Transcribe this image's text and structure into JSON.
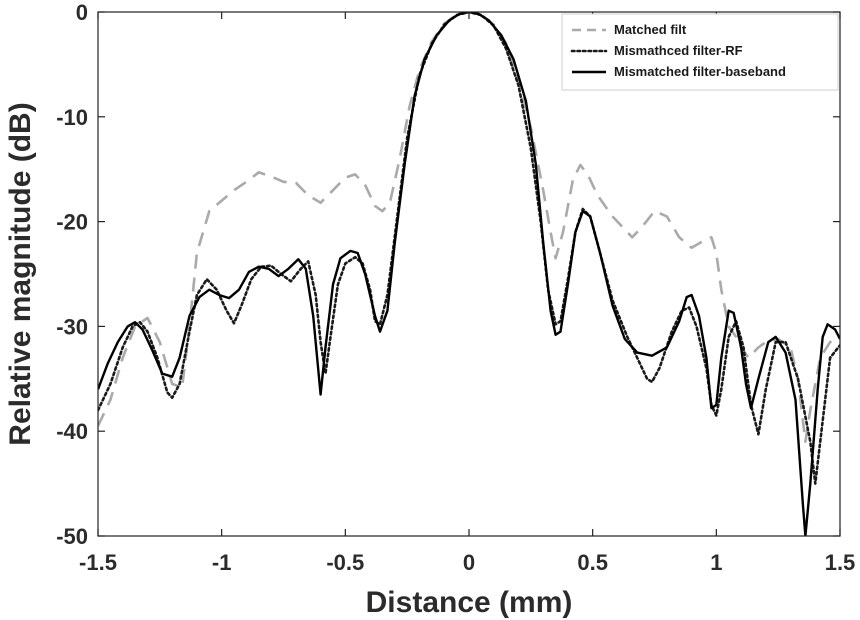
{
  "chart_data": {
    "type": "line",
    "xlabel": "Distance (mm)",
    "ylabel": "Relative magnitude (dB)",
    "xlim": [
      -1.5,
      1.5
    ],
    "ylim": [
      -50,
      0
    ],
    "xticks": [
      -1.5,
      -1,
      -0.5,
      0,
      0.5,
      1,
      1.5
    ],
    "xtick_labels": [
      "-1.5",
      "-1",
      "-0.5",
      "0",
      "0.5",
      "1",
      "1.5"
    ],
    "yticks": [
      -50,
      -40,
      -30,
      -20,
      -10,
      0
    ],
    "ytick_labels": [
      "-50",
      "-40",
      "-30",
      "-20",
      "-10",
      "0"
    ],
    "grid": false,
    "legend_position": "top-right",
    "series": [
      {
        "name": "Matched filt",
        "color": "#aaaaaa",
        "style": "dashed",
        "points": [
          [
            -1.5,
            -39.5
          ],
          [
            -1.45,
            -37
          ],
          [
            -1.4,
            -33
          ],
          [
            -1.35,
            -30
          ],
          [
            -1.3,
            -29.2
          ],
          [
            -1.25,
            -31.5
          ],
          [
            -1.2,
            -35.5
          ],
          [
            -1.16,
            -35.8
          ],
          [
            -1.13,
            -30
          ],
          [
            -1.1,
            -23
          ],
          [
            -1.05,
            -19
          ],
          [
            -1.0,
            -18
          ],
          [
            -0.95,
            -17
          ],
          [
            -0.9,
            -16.2
          ],
          [
            -0.85,
            -15.3
          ],
          [
            -0.8,
            -15.7
          ],
          [
            -0.75,
            -16.2
          ],
          [
            -0.7,
            -16.3
          ],
          [
            -0.65,
            -17.5
          ],
          [
            -0.6,
            -18.2
          ],
          [
            -0.55,
            -17
          ],
          [
            -0.5,
            -15.8
          ],
          [
            -0.46,
            -15.5
          ],
          [
            -0.42,
            -16.5
          ],
          [
            -0.38,
            -18.5
          ],
          [
            -0.35,
            -19
          ],
          [
            -0.32,
            -18.2
          ],
          [
            -0.28,
            -14
          ],
          [
            -0.24,
            -9
          ],
          [
            -0.2,
            -5.5
          ],
          [
            -0.15,
            -2.8
          ],
          [
            -0.1,
            -1.1
          ],
          [
            -0.05,
            -0.3
          ],
          [
            0,
            0
          ],
          [
            0.05,
            -0.3
          ],
          [
            0.1,
            -1.2
          ],
          [
            0.15,
            -3
          ],
          [
            0.2,
            -6.5
          ],
          [
            0.25,
            -11
          ],
          [
            0.3,
            -17
          ],
          [
            0.33,
            -21
          ],
          [
            0.35,
            -23.5
          ],
          [
            0.38,
            -21
          ],
          [
            0.42,
            -16
          ],
          [
            0.45,
            -14.6
          ],
          [
            0.48,
            -15.5
          ],
          [
            0.52,
            -17.5
          ],
          [
            0.58,
            -19.5
          ],
          [
            0.62,
            -20.5
          ],
          [
            0.66,
            -21.5
          ],
          [
            0.7,
            -20.5
          ],
          [
            0.75,
            -19
          ],
          [
            0.8,
            -19.5
          ],
          [
            0.85,
            -21.5
          ],
          [
            0.9,
            -22.5
          ],
          [
            0.95,
            -21.8
          ],
          [
            0.98,
            -21.5
          ],
          [
            1.0,
            -23
          ],
          [
            1.02,
            -26.5
          ],
          [
            1.05,
            -30
          ],
          [
            1.08,
            -31
          ],
          [
            1.1,
            -32
          ],
          [
            1.13,
            -33
          ],
          [
            1.17,
            -32
          ],
          [
            1.2,
            -31.5
          ],
          [
            1.25,
            -31.2
          ],
          [
            1.3,
            -32
          ],
          [
            1.33,
            -35
          ],
          [
            1.36,
            -41
          ],
          [
            1.38,
            -38
          ],
          [
            1.42,
            -33
          ],
          [
            1.46,
            -31.5
          ],
          [
            1.5,
            -31
          ]
        ]
      },
      {
        "name": "Mismathced filter-RF",
        "color": "#1a1a1a",
        "style": "dotted",
        "points": [
          [
            -1.5,
            -38
          ],
          [
            -1.45,
            -35.5
          ],
          [
            -1.4,
            -32
          ],
          [
            -1.36,
            -30
          ],
          [
            -1.33,
            -29.6
          ],
          [
            -1.3,
            -30.5
          ],
          [
            -1.26,
            -33
          ],
          [
            -1.22,
            -36.3
          ],
          [
            -1.2,
            -36.8
          ],
          [
            -1.17,
            -35.5
          ],
          [
            -1.13,
            -30.5
          ],
          [
            -1.1,
            -27
          ],
          [
            -1.06,
            -25.5
          ],
          [
            -1.02,
            -26.5
          ],
          [
            -0.98,
            -28.5
          ],
          [
            -0.95,
            -29.7
          ],
          [
            -0.92,
            -28
          ],
          [
            -0.88,
            -25.5
          ],
          [
            -0.84,
            -24.3
          ],
          [
            -0.8,
            -24.2
          ],
          [
            -0.76,
            -25
          ],
          [
            -0.72,
            -25.7
          ],
          [
            -0.68,
            -24.5
          ],
          [
            -0.65,
            -23.8
          ],
          [
            -0.62,
            -27
          ],
          [
            -0.6,
            -31.5
          ],
          [
            -0.58,
            -34.5
          ],
          [
            -0.56,
            -31
          ],
          [
            -0.53,
            -26
          ],
          [
            -0.5,
            -24
          ],
          [
            -0.46,
            -23.4
          ],
          [
            -0.43,
            -24
          ],
          [
            -0.4,
            -26.5
          ],
          [
            -0.38,
            -29.5
          ],
          [
            -0.36,
            -29.8
          ],
          [
            -0.33,
            -27
          ],
          [
            -0.29,
            -19.5
          ],
          [
            -0.25,
            -12
          ],
          [
            -0.2,
            -6
          ],
          [
            -0.15,
            -3
          ],
          [
            -0.1,
            -1.2
          ],
          [
            -0.05,
            -0.3
          ],
          [
            0,
            0
          ],
          [
            0.05,
            -0.3
          ],
          [
            0.1,
            -1.3
          ],
          [
            0.15,
            -3.5
          ],
          [
            0.2,
            -7
          ],
          [
            0.25,
            -13
          ],
          [
            0.29,
            -20
          ],
          [
            0.32,
            -26.5
          ],
          [
            0.35,
            -29.8
          ],
          [
            0.37,
            -29.5
          ],
          [
            0.4,
            -25.5
          ],
          [
            0.43,
            -21
          ],
          [
            0.46,
            -18.8
          ],
          [
            0.49,
            -19.5
          ],
          [
            0.53,
            -23
          ],
          [
            0.58,
            -27.5
          ],
          [
            0.64,
            -31
          ],
          [
            0.68,
            -33
          ],
          [
            0.72,
            -35
          ],
          [
            0.74,
            -35.3
          ],
          [
            0.77,
            -34
          ],
          [
            0.82,
            -30.5
          ],
          [
            0.86,
            -28.5
          ],
          [
            0.89,
            -28.2
          ],
          [
            0.92,
            -30
          ],
          [
            0.96,
            -34
          ],
          [
            0.98,
            -37.5
          ],
          [
            1.0,
            -38.5
          ],
          [
            1.02,
            -36
          ],
          [
            1.05,
            -31
          ],
          [
            1.08,
            -29.5
          ],
          [
            1.11,
            -32
          ],
          [
            1.14,
            -37.5
          ],
          [
            1.17,
            -40.3
          ],
          [
            1.2,
            -36
          ],
          [
            1.24,
            -31.5
          ],
          [
            1.28,
            -31.5
          ],
          [
            1.33,
            -35
          ],
          [
            1.38,
            -41
          ],
          [
            1.4,
            -45
          ],
          [
            1.43,
            -39
          ],
          [
            1.46,
            -33
          ],
          [
            1.5,
            -31.8
          ]
        ]
      },
      {
        "name": "Mismatched filter-baseband",
        "color": "#000000",
        "style": "solid",
        "points": [
          [
            -1.5,
            -36
          ],
          [
            -1.46,
            -33.5
          ],
          [
            -1.42,
            -31.5
          ],
          [
            -1.38,
            -30
          ],
          [
            -1.35,
            -29.6
          ],
          [
            -1.32,
            -30.3
          ],
          [
            -1.28,
            -32.3
          ],
          [
            -1.24,
            -34.5
          ],
          [
            -1.2,
            -34.8
          ],
          [
            -1.17,
            -33
          ],
          [
            -1.13,
            -29
          ],
          [
            -1.09,
            -27.2
          ],
          [
            -1.05,
            -26.5
          ],
          [
            -1.01,
            -27
          ],
          [
            -0.97,
            -27.3
          ],
          [
            -0.93,
            -26.5
          ],
          [
            -0.89,
            -24.8
          ],
          [
            -0.85,
            -24.3
          ],
          [
            -0.81,
            -24.5
          ],
          [
            -0.77,
            -25.2
          ],
          [
            -0.73,
            -24.5
          ],
          [
            -0.69,
            -23.6
          ],
          [
            -0.66,
            -24.5
          ],
          [
            -0.63,
            -29
          ],
          [
            -0.6,
            -36.5
          ],
          [
            -0.58,
            -32
          ],
          [
            -0.55,
            -26
          ],
          [
            -0.52,
            -23.5
          ],
          [
            -0.48,
            -22.8
          ],
          [
            -0.45,
            -23
          ],
          [
            -0.42,
            -25
          ],
          [
            -0.38,
            -29
          ],
          [
            -0.36,
            -30.5
          ],
          [
            -0.33,
            -28.5
          ],
          [
            -0.3,
            -22
          ],
          [
            -0.26,
            -14.5
          ],
          [
            -0.22,
            -8
          ],
          [
            -0.18,
            -4.5
          ],
          [
            -0.13,
            -2.2
          ],
          [
            -0.08,
            -0.8
          ],
          [
            -0.04,
            -0.2
          ],
          [
            0,
            0
          ],
          [
            0.04,
            -0.2
          ],
          [
            0.08,
            -0.8
          ],
          [
            0.13,
            -2.2
          ],
          [
            0.18,
            -4.5
          ],
          [
            0.23,
            -8.5
          ],
          [
            0.27,
            -14.5
          ],
          [
            0.3,
            -22
          ],
          [
            0.33,
            -28.5
          ],
          [
            0.35,
            -30.8
          ],
          [
            0.37,
            -30.5
          ],
          [
            0.4,
            -26
          ],
          [
            0.43,
            -21
          ],
          [
            0.46,
            -19
          ],
          [
            0.49,
            -19.5
          ],
          [
            0.53,
            -23
          ],
          [
            0.58,
            -28
          ],
          [
            0.63,
            -31.2
          ],
          [
            0.68,
            -32.5
          ],
          [
            0.74,
            -32.8
          ],
          [
            0.8,
            -32
          ],
          [
            0.85,
            -29.5
          ],
          [
            0.88,
            -27.2
          ],
          [
            0.9,
            -27
          ],
          [
            0.93,
            -29
          ],
          [
            0.96,
            -33
          ],
          [
            0.98,
            -37.8
          ],
          [
            1.0,
            -37.5
          ],
          [
            1.02,
            -33
          ],
          [
            1.05,
            -28.5
          ],
          [
            1.07,
            -28.7
          ],
          [
            1.1,
            -32
          ],
          [
            1.12,
            -35.5
          ],
          [
            1.14,
            -37.8
          ],
          [
            1.17,
            -35
          ],
          [
            1.21,
            -31.5
          ],
          [
            1.24,
            -31
          ],
          [
            1.28,
            -32.5
          ],
          [
            1.32,
            -37
          ],
          [
            1.35,
            -47
          ],
          [
            1.36,
            -50
          ],
          [
            1.38,
            -45
          ],
          [
            1.41,
            -36
          ],
          [
            1.43,
            -31
          ],
          [
            1.45,
            -29.8
          ],
          [
            1.48,
            -30.3
          ],
          [
            1.5,
            -31.2
          ]
        ]
      }
    ]
  }
}
